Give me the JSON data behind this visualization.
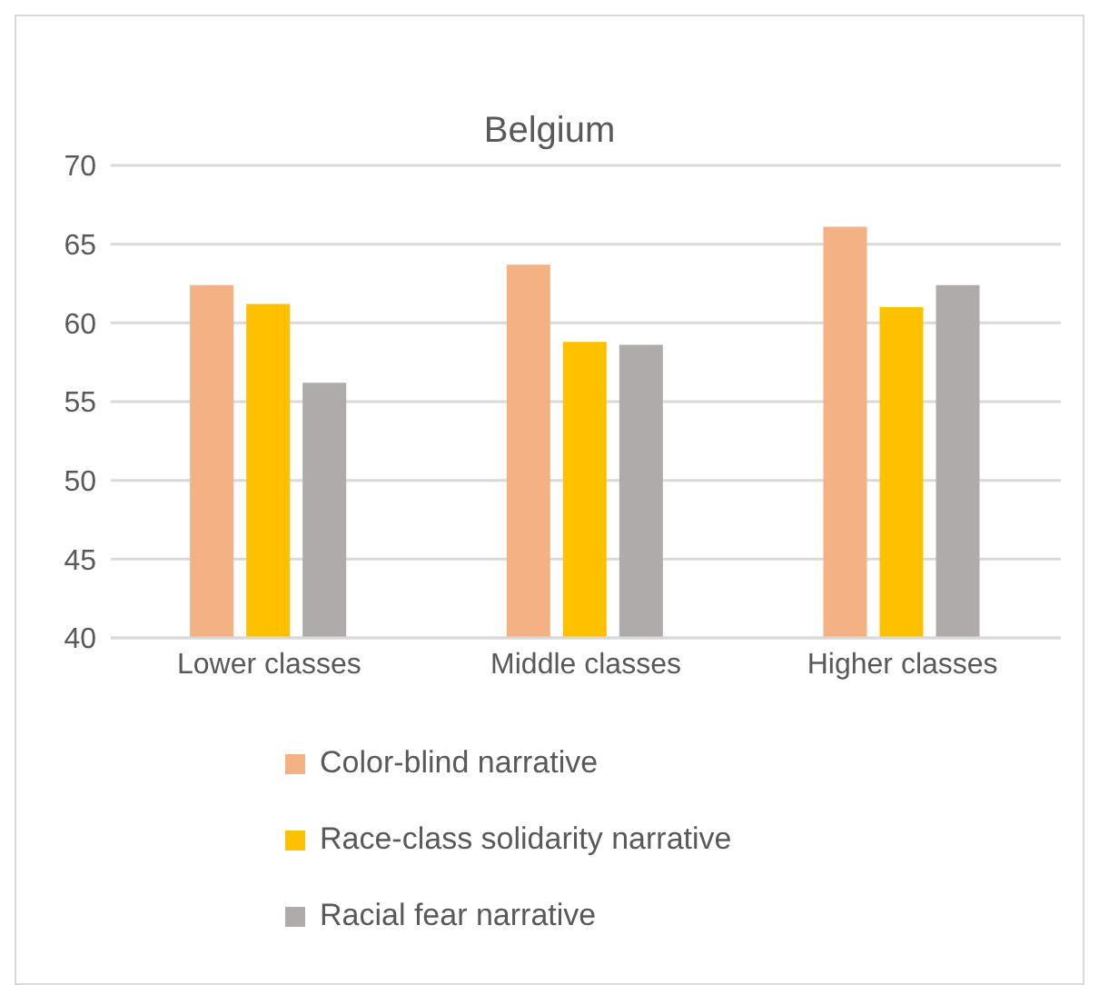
{
  "chart_data": {
    "type": "bar",
    "title": "Belgium",
    "categories": [
      "Lower classes",
      "Middle classes",
      "Higher classes"
    ],
    "series": [
      {
        "name": "Color-blind narrative",
        "color": "#f4b183",
        "values": [
          62.4,
          63.7,
          66.1
        ]
      },
      {
        "name": "Race-class solidarity narrative",
        "color": "#ffc000",
        "values": [
          61.2,
          58.8,
          61.0
        ]
      },
      {
        "name": "Racial fear narrative",
        "color": "#afabab",
        "values": [
          56.2,
          58.6,
          62.4
        ]
      }
    ],
    "ylim": [
      40,
      70
    ],
    "yticks": [
      40,
      45,
      50,
      55,
      60,
      65,
      70
    ],
    "grid": "y",
    "legend": "bottom"
  }
}
